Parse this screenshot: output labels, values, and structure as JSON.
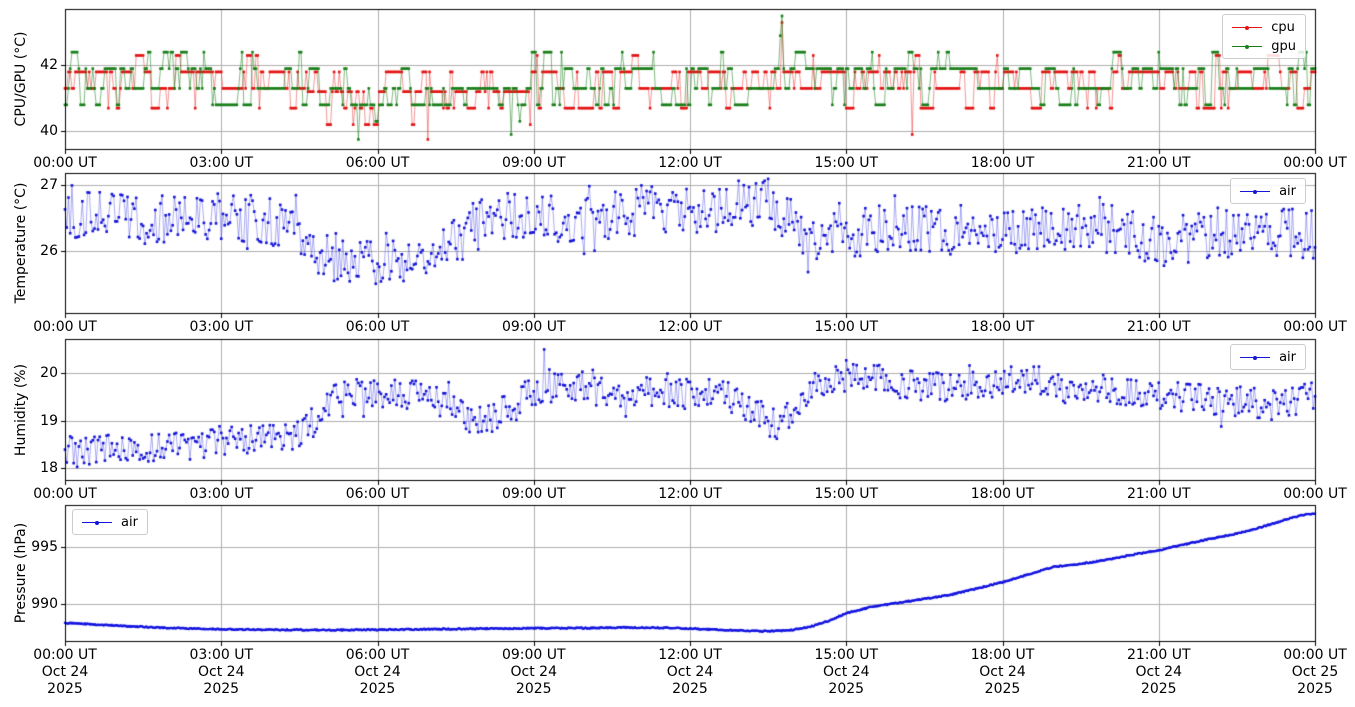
{
  "figure": {
    "background": "#ffffff",
    "grid_color": "#b0b0b0",
    "axis_color": "#000000"
  },
  "seed": 7,
  "x_axis": {
    "tick_labels": [
      "00:00 UT",
      "03:00 UT",
      "06:00 UT",
      "09:00 UT",
      "12:00 UT",
      "15:00 UT",
      "18:00 UT",
      "21:00 UT",
      "00:00 UT"
    ],
    "date_labels": [
      "Oct 24",
      "Oct 24",
      "Oct 24",
      "Oct 24",
      "Oct 24",
      "Oct 24",
      "Oct 24",
      "Oct 24",
      "Oct 25"
    ],
    "year_labels": [
      "2025",
      "2025",
      "2025",
      "2025",
      "2025",
      "2025",
      "2025",
      "2025",
      "2025"
    ]
  },
  "chart_data": [
    {
      "type": "line",
      "name": "cpu-gpu-temperature",
      "ylabel": "CPU/GPU (°C)",
      "yticks": [
        40,
        42
      ],
      "ylim": [
        39.46,
        43.71
      ],
      "xlim_hours": [
        0,
        24
      ],
      "x_tick_every_hours": 3,
      "grid": true,
      "legend_pos": "top-right",
      "show_dates": false,
      "series": [
        {
          "name": "cpu",
          "color": "#e41414",
          "line_color": "rgba(235,50,50,0.5)",
          "gen": "levels",
          "step_min": 2,
          "persist": 0.6,
          "segments": [
            {
              "from": 0,
              "to": 4.65,
              "levels": [
                [
                  41.8,
                  0.46
                ],
                [
                  41.3,
                  0.3
                ],
                [
                  40.7,
                  0.16
                ],
                [
                  42.3,
                  0.08
                ]
              ]
            },
            {
              "from": 4.65,
              "to": 8.95,
              "levels": [
                [
                  41.2,
                  0.5
                ],
                [
                  40.7,
                  0.28
                ],
                [
                  41.8,
                  0.12
                ],
                [
                  40.2,
                  0.1
                ]
              ]
            },
            {
              "from": 8.95,
              "to": 24.1,
              "levels": [
                [
                  41.8,
                  0.46
                ],
                [
                  41.3,
                  0.32
                ],
                [
                  40.7,
                  0.14
                ],
                [
                  42.3,
                  0.08
                ]
              ]
            }
          ],
          "events": [
            [
              6.97,
              39.75
            ],
            [
              13.77,
              43.3
            ],
            [
              16.25,
              39.9
            ]
          ]
        },
        {
          "name": "gpu",
          "color": "#1a7f1a",
          "line_color": "rgba(30,130,30,0.55)",
          "gen": "levels",
          "step_min": 2,
          "persist": 0.62,
          "segments": [
            {
              "from": 0,
              "to": 4.65,
              "levels": [
                [
                  41.9,
                  0.48
                ],
                [
                  41.3,
                  0.32
                ],
                [
                  40.8,
                  0.12
                ],
                [
                  42.4,
                  0.08
                ]
              ]
            },
            {
              "from": 4.65,
              "to": 8.95,
              "levels": [
                [
                  41.3,
                  0.55
                ],
                [
                  40.8,
                  0.25
                ],
                [
                  41.9,
                  0.12
                ],
                [
                  40.3,
                  0.08
                ]
              ]
            },
            {
              "from": 8.95,
              "to": 24.1,
              "levels": [
                [
                  41.9,
                  0.48
                ],
                [
                  41.3,
                  0.32
                ],
                [
                  40.8,
                  0.12
                ],
                [
                  42.4,
                  0.08
                ]
              ]
            }
          ],
          "events": [
            [
              5.63,
              39.75
            ],
            [
              8.55,
              39.9
            ],
            [
              13.73,
              42.9
            ],
            [
              13.77,
              43.5
            ]
          ]
        }
      ]
    },
    {
      "type": "line",
      "name": "air-temperature",
      "ylabel": "Temperature (°C)",
      "yticks": [
        26,
        27
      ],
      "ylim": [
        25.05,
        27.19
      ],
      "xlim_hours": [
        0,
        24
      ],
      "x_tick_every_hours": 3,
      "grid": true,
      "legend_pos": "top-right",
      "show_dates": false,
      "series": [
        {
          "name": "air",
          "color": "#1616d8",
          "line_color": "rgba(70,70,230,0.45)",
          "gen": "trend",
          "step_min": 2,
          "amp": 0.38,
          "out": 0.55,
          "anchors": [
            [
              0,
              26.6
            ],
            [
              0.5,
              26.55
            ],
            [
              1,
              26.5
            ],
            [
              1.5,
              26.45
            ],
            [
              2,
              26.5
            ],
            [
              2.5,
              26.45
            ],
            [
              3,
              26.45
            ],
            [
              3.5,
              26.5
            ],
            [
              4,
              26.45
            ],
            [
              4.6,
              26.3
            ],
            [
              4.9,
              26.0
            ],
            [
              5.2,
              25.9
            ],
            [
              5.7,
              25.85
            ],
            [
              6.2,
              25.9
            ],
            [
              6.7,
              25.9
            ],
            [
              7.2,
              26.0
            ],
            [
              7.6,
              26.2
            ],
            [
              8,
              26.45
            ],
            [
              8.5,
              26.55
            ],
            [
              9,
              26.45
            ],
            [
              9.5,
              26.5
            ],
            [
              10,
              26.55
            ],
            [
              10.5,
              26.55
            ],
            [
              11,
              26.6
            ],
            [
              11.5,
              26.65
            ],
            [
              12,
              26.6
            ],
            [
              12.5,
              26.65
            ],
            [
              13,
              26.7
            ],
            [
              13.4,
              26.8
            ],
            [
              13.8,
              26.55
            ],
            [
              14.2,
              26.3
            ],
            [
              14.6,
              26.2
            ],
            [
              15,
              26.2
            ],
            [
              15.5,
              26.3
            ],
            [
              16,
              26.35
            ],
            [
              16.5,
              26.3
            ],
            [
              17,
              26.3
            ],
            [
              17.5,
              26.35
            ],
            [
              18,
              26.35
            ],
            [
              18.5,
              26.3
            ],
            [
              19,
              26.3
            ],
            [
              19.5,
              26.35
            ],
            [
              20,
              26.35
            ],
            [
              20.5,
              26.3
            ],
            [
              20.9,
              26.15
            ],
            [
              21.1,
              26.0
            ],
            [
              21.4,
              26.15
            ],
            [
              21.8,
              26.25
            ],
            [
              22.2,
              26.3
            ],
            [
              22.6,
              26.3
            ],
            [
              23,
              26.25
            ],
            [
              23.4,
              26.3
            ],
            [
              23.7,
              26.25
            ],
            [
              24,
              26.15
            ]
          ],
          "events": [
            [
              0.13,
              27.0
            ],
            [
              13.5,
              27.1
            ]
          ]
        }
      ]
    },
    {
      "type": "line",
      "name": "air-humidity",
      "ylabel": "Humidity (%)",
      "yticks": [
        18,
        19,
        20
      ],
      "ylim": [
        17.75,
        20.72
      ],
      "xlim_hours": [
        0,
        24
      ],
      "x_tick_every_hours": 3,
      "grid": true,
      "legend_pos": "top-right",
      "show_dates": false,
      "series": [
        {
          "name": "air",
          "color": "#1616d8",
          "line_color": "rgba(70,70,230,0.45)",
          "gen": "trend",
          "step_min": 2,
          "amp": 0.32,
          "out": 0.5,
          "anchors": [
            [
              0,
              18.4
            ],
            [
              0.3,
              18.3
            ],
            [
              0.7,
              18.45
            ],
            [
              1,
              18.5
            ],
            [
              1.5,
              18.42
            ],
            [
              2,
              18.5
            ],
            [
              2.5,
              18.48
            ],
            [
              3,
              18.6
            ],
            [
              3.5,
              18.58
            ],
            [
              4,
              18.62
            ],
            [
              4.5,
              18.75
            ],
            [
              4.8,
              19.0
            ],
            [
              5.1,
              19.45
            ],
            [
              5.4,
              19.6
            ],
            [
              6,
              19.6
            ],
            [
              6.5,
              19.55
            ],
            [
              7,
              19.5
            ],
            [
              7.4,
              19.25
            ],
            [
              7.8,
              19.05
            ],
            [
              8.1,
              19.0
            ],
            [
              8.4,
              19.2
            ],
            [
              8.8,
              19.45
            ],
            [
              9.2,
              19.75
            ],
            [
              9.6,
              19.8
            ],
            [
              10,
              19.7
            ],
            [
              10.5,
              19.6
            ],
            [
              11,
              19.65
            ],
            [
              11.5,
              19.6
            ],
            [
              12,
              19.55
            ],
            [
              12.5,
              19.6
            ],
            [
              12.9,
              19.45
            ],
            [
              13.2,
              19.15
            ],
            [
              13.6,
              18.95
            ],
            [
              13.9,
              19.1
            ],
            [
              14.3,
              19.6
            ],
            [
              14.7,
              19.95
            ],
            [
              15.1,
              20.0
            ],
            [
              15.5,
              19.9
            ],
            [
              16,
              19.8
            ],
            [
              16.5,
              19.7
            ],
            [
              17,
              19.7
            ],
            [
              17.5,
              19.75
            ],
            [
              18,
              19.85
            ],
            [
              18.5,
              19.85
            ],
            [
              19,
              19.8
            ],
            [
              19.3,
              19.6
            ],
            [
              19.6,
              19.7
            ],
            [
              20,
              19.65
            ],
            [
              20.5,
              19.6
            ],
            [
              21,
              19.55
            ],
            [
              21.5,
              19.5
            ],
            [
              22,
              19.45
            ],
            [
              22.5,
              19.4
            ],
            [
              23,
              19.35
            ],
            [
              23.3,
              19.3
            ],
            [
              23.6,
              19.35
            ],
            [
              24,
              19.55
            ]
          ],
          "events": [
            [
              9.2,
              20.5
            ]
          ]
        }
      ]
    },
    {
      "type": "line",
      "name": "air-pressure",
      "ylabel": "Pressure (hPa)",
      "yticks": [
        990,
        995
      ],
      "ylim": [
        986.77,
        998.64
      ],
      "xlim_hours": [
        0,
        24
      ],
      "x_tick_every_hours": 3,
      "grid": true,
      "legend_pos": "top-left",
      "show_dates": true,
      "series": [
        {
          "name": "air",
          "color": "#1313e0",
          "line_color": "rgba(19,19,224,0.8)",
          "line_width": 1.2,
          "marker_size": 2.2,
          "gen": "trend",
          "step_min": 1.2,
          "amp": 0.055,
          "out": 0,
          "anchors": [
            [
              0,
              988.35
            ],
            [
              0.5,
              988.22
            ],
            [
              1,
              988.1
            ],
            [
              1.5,
              988.0
            ],
            [
              2,
              987.9
            ],
            [
              3,
              987.8
            ],
            [
              4,
              987.75
            ],
            [
              5,
              987.72
            ],
            [
              6,
              987.75
            ],
            [
              7,
              987.8
            ],
            [
              8,
              987.85
            ],
            [
              9,
              987.88
            ],
            [
              10,
              987.9
            ],
            [
              10.8,
              987.95
            ],
            [
              11.5,
              987.92
            ],
            [
              12,
              987.85
            ],
            [
              12.5,
              987.75
            ],
            [
              13,
              987.68
            ],
            [
              13.5,
              987.62
            ],
            [
              13.9,
              987.7
            ],
            [
              14.3,
              988.0
            ],
            [
              14.7,
              988.6
            ],
            [
              15,
              989.2
            ],
            [
              15.5,
              989.75
            ],
            [
              16,
              990.1
            ],
            [
              16.5,
              990.45
            ],
            [
              17,
              990.8
            ],
            [
              17.5,
              991.35
            ],
            [
              18,
              991.9
            ],
            [
              18.5,
              992.6
            ],
            [
              19,
              993.25
            ],
            [
              19.5,
              993.5
            ],
            [
              20,
              993.85
            ],
            [
              20.5,
              994.3
            ],
            [
              21,
              994.7
            ],
            [
              21.5,
              995.2
            ],
            [
              22,
              995.7
            ],
            [
              22.5,
              996.15
            ],
            [
              23,
              996.75
            ],
            [
              23.5,
              997.45
            ],
            [
              23.8,
              997.8
            ],
            [
              24,
              997.85
            ]
          ],
          "events": []
        }
      ]
    }
  ]
}
